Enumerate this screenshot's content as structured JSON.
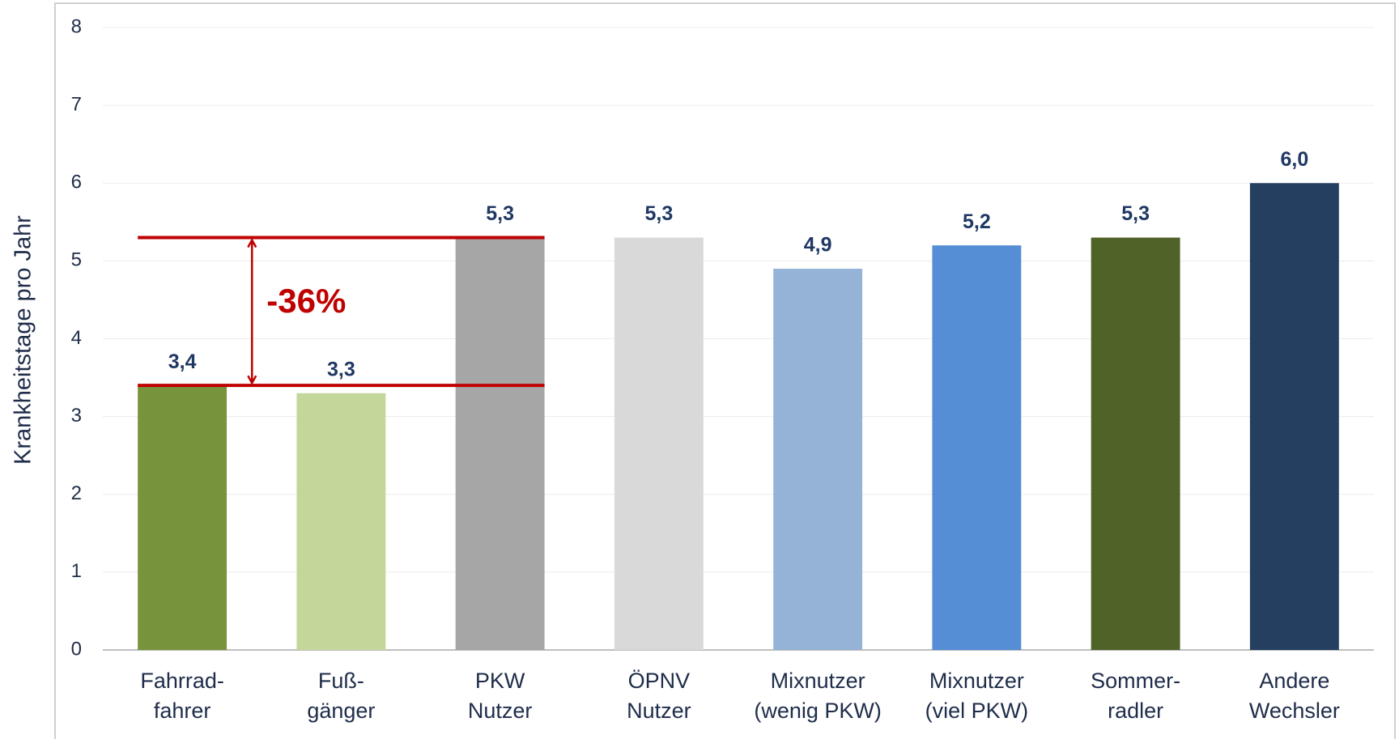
{
  "chart_data": {
    "type": "bar",
    "y_axis_label": "Krankheitstage pro Jahr",
    "categories": [
      [
        "Fahrrad-",
        "fahrer"
      ],
      [
        "Fuß-",
        "gänger"
      ],
      [
        "PKW",
        "Nutzer"
      ],
      [
        "ÖPNV",
        "Nutzer"
      ],
      [
        "Mixnutzer",
        "(wenig PKW)"
      ],
      [
        "Mixnutzer",
        "(viel PKW)"
      ],
      [
        "Sommer-",
        "radler"
      ],
      [
        "Andere",
        "Wechsler"
      ]
    ],
    "values": [
      3.4,
      3.3,
      5.3,
      5.3,
      4.9,
      5.2,
      5.3,
      6.0
    ],
    "value_labels": [
      "3,4",
      "3,3",
      "5,3",
      "5,3",
      "4,9",
      "5,2",
      "5,3",
      "6,0"
    ],
    "colors": [
      "#77933c",
      "#c4d79b",
      "#a6a6a6",
      "#d9d9d9",
      "#95b3d7",
      "#558ed5",
      "#4f6228",
      "#243f60"
    ],
    "ylim": [
      0,
      8
    ],
    "yticks": [
      0,
      1,
      2,
      3,
      4,
      5,
      6,
      7,
      8
    ],
    "grid": true,
    "annotation": "-36%"
  }
}
